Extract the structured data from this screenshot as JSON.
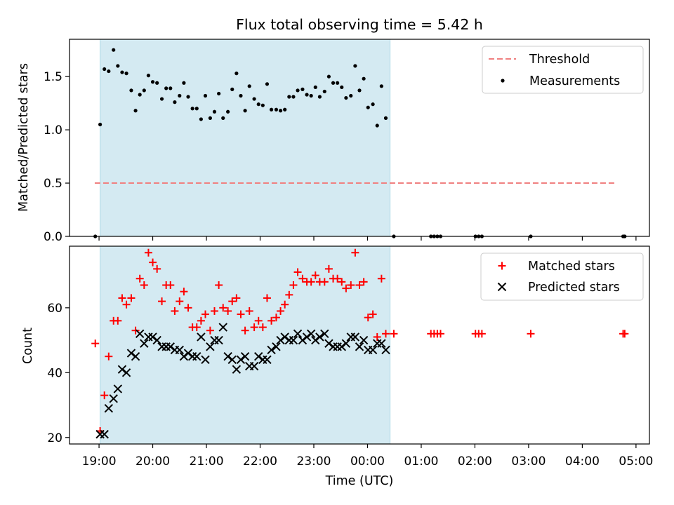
{
  "title": "Flux total observing time = 5.42 h",
  "chart_data": [
    {
      "type": "scatter",
      "panel": "top",
      "x_unit": "hours since 19:00 UTC",
      "ylabel": "Matched/Predicted stars",
      "ylim": [
        0,
        1.85
      ],
      "yticks": [
        0.0,
        0.5,
        1.0,
        1.5
      ],
      "ytick_labels": [
        "0.0",
        "0.5",
        "1.0",
        "1.5"
      ],
      "shaded_interval": [
        0.02,
        5.42
      ],
      "legend_position": "upper right",
      "series": [
        {
          "name": "Threshold",
          "kind": "dashed-line",
          "color": "#f08080",
          "x": [
            -0.08,
            9.6
          ],
          "y": [
            0.5,
            0.5
          ]
        },
        {
          "name": "Measurements",
          "kind": "dots",
          "color": "#000000",
          "points": [
            [
              -0.07,
              0.0
            ],
            [
              0.02,
              1.05
            ],
            [
              0.1,
              1.57
            ],
            [
              0.18,
              1.55
            ],
            [
              0.27,
              1.75
            ],
            [
              0.35,
              1.6
            ],
            [
              0.43,
              1.54
            ],
            [
              0.51,
              1.53
            ],
            [
              0.6,
              1.37
            ],
            [
              0.68,
              1.18
            ],
            [
              0.76,
              1.33
            ],
            [
              0.84,
              1.37
            ],
            [
              0.92,
              1.51
            ],
            [
              1.0,
              1.45
            ],
            [
              1.08,
              1.44
            ],
            [
              1.17,
              1.29
            ],
            [
              1.25,
              1.39
            ],
            [
              1.33,
              1.39
            ],
            [
              1.41,
              1.26
            ],
            [
              1.5,
              1.32
            ],
            [
              1.58,
              1.44
            ],
            [
              1.66,
              1.31
            ],
            [
              1.74,
              1.2
            ],
            [
              1.82,
              1.2
            ],
            [
              1.9,
              1.1
            ],
            [
              1.98,
              1.32
            ],
            [
              2.07,
              1.11
            ],
            [
              2.15,
              1.17
            ],
            [
              2.23,
              1.34
            ],
            [
              2.31,
              1.11
            ],
            [
              2.4,
              1.17
            ],
            [
              2.48,
              1.38
            ],
            [
              2.56,
              1.53
            ],
            [
              2.64,
              1.32
            ],
            [
              2.72,
              1.18
            ],
            [
              2.8,
              1.41
            ],
            [
              2.89,
              1.29
            ],
            [
              2.97,
              1.24
            ],
            [
              3.05,
              1.23
            ],
            [
              3.13,
              1.43
            ],
            [
              3.21,
              1.19
            ],
            [
              3.3,
              1.19
            ],
            [
              3.38,
              1.18
            ],
            [
              3.46,
              1.19
            ],
            [
              3.54,
              1.31
            ],
            [
              3.62,
              1.31
            ],
            [
              3.7,
              1.37
            ],
            [
              3.79,
              1.38
            ],
            [
              3.87,
              1.33
            ],
            [
              3.95,
              1.32
            ],
            [
              4.03,
              1.4
            ],
            [
              4.11,
              1.31
            ],
            [
              4.2,
              1.36
            ],
            [
              4.28,
              1.5
            ],
            [
              4.36,
              1.44
            ],
            [
              4.44,
              1.44
            ],
            [
              4.52,
              1.4
            ],
            [
              4.6,
              1.3
            ],
            [
              4.69,
              1.32
            ],
            [
              4.77,
              1.6
            ],
            [
              4.85,
              1.37
            ],
            [
              4.93,
              1.48
            ],
            [
              5.01,
              1.21
            ],
            [
              5.1,
              1.24
            ],
            [
              5.18,
              1.04
            ],
            [
              5.26,
              1.41
            ],
            [
              5.34,
              1.11
            ],
            [
              5.49,
              0.0
            ],
            [
              6.18,
              0.0
            ],
            [
              6.24,
              0.0
            ],
            [
              6.3,
              0.0
            ],
            [
              6.36,
              0.0
            ],
            [
              7.01,
              0.0
            ],
            [
              7.07,
              0.0
            ],
            [
              7.13,
              0.0
            ],
            [
              8.04,
              0.0
            ],
            [
              9.76,
              0.0
            ],
            [
              9.79,
              0.0
            ]
          ]
        }
      ]
    },
    {
      "type": "scatter",
      "panel": "bottom",
      "x_unit": "hours since 19:00 UTC",
      "xlabel": "Time (UTC)",
      "ylabel": "Count",
      "ylim": [
        18,
        79
      ],
      "yticks": [
        20,
        40,
        60
      ],
      "ytick_labels": [
        "20",
        "40",
        "60"
      ],
      "xlim": [
        -0.55,
        10.25
      ],
      "xticks": [
        0,
        1,
        2,
        3,
        4,
        5,
        6,
        7,
        8,
        9,
        10
      ],
      "xtick_labels": [
        "19:00",
        "20:00",
        "21:00",
        "22:00",
        "23:00",
        "00:00",
        "01:00",
        "02:00",
        "03:00",
        "04:00",
        "05:00"
      ],
      "shaded_interval": [
        0.02,
        5.42
      ],
      "legend_position": "upper right",
      "series": [
        {
          "name": "Matched stars",
          "marker": "plus",
          "color": "#ff0000",
          "points": [
            [
              -0.07,
              49
            ],
            [
              0.02,
              22
            ],
            [
              0.1,
              33
            ],
            [
              0.18,
              45
            ],
            [
              0.27,
              56
            ],
            [
              0.35,
              56
            ],
            [
              0.43,
              63
            ],
            [
              0.51,
              61
            ],
            [
              0.6,
              63
            ],
            [
              0.68,
              53
            ],
            [
              0.76,
              69
            ],
            [
              0.84,
              67
            ],
            [
              0.92,
              77
            ],
            [
              1.0,
              74
            ],
            [
              1.08,
              72
            ],
            [
              1.17,
              62
            ],
            [
              1.25,
              67
            ],
            [
              1.33,
              67
            ],
            [
              1.41,
              59
            ],
            [
              1.5,
              62
            ],
            [
              1.58,
              65
            ],
            [
              1.66,
              60
            ],
            [
              1.74,
              54
            ],
            [
              1.82,
              54
            ],
            [
              1.9,
              56
            ],
            [
              1.98,
              58
            ],
            [
              2.07,
              53
            ],
            [
              2.15,
              59
            ],
            [
              2.23,
              67
            ],
            [
              2.31,
              60
            ],
            [
              2.4,
              59
            ],
            [
              2.48,
              62
            ],
            [
              2.56,
              63
            ],
            [
              2.64,
              58
            ],
            [
              2.72,
              53
            ],
            [
              2.8,
              59
            ],
            [
              2.89,
              54
            ],
            [
              2.97,
              56
            ],
            [
              3.05,
              54
            ],
            [
              3.13,
              63
            ],
            [
              3.21,
              56
            ],
            [
              3.3,
              57
            ],
            [
              3.38,
              59
            ],
            [
              3.46,
              61
            ],
            [
              3.54,
              64
            ],
            [
              3.62,
              67
            ],
            [
              3.7,
              71
            ],
            [
              3.79,
              69
            ],
            [
              3.87,
              68
            ],
            [
              3.95,
              68
            ],
            [
              4.03,
              70
            ],
            [
              4.11,
              68
            ],
            [
              4.2,
              68
            ],
            [
              4.28,
              72
            ],
            [
              4.36,
              69
            ],
            [
              4.44,
              69
            ],
            [
              4.52,
              68
            ],
            [
              4.6,
              66
            ],
            [
              4.69,
              67
            ],
            [
              4.77,
              77
            ],
            [
              4.85,
              67
            ],
            [
              4.93,
              68
            ],
            [
              5.01,
              57
            ],
            [
              5.1,
              58
            ],
            [
              5.18,
              51
            ],
            [
              5.26,
              69
            ],
            [
              5.34,
              52
            ],
            [
              5.49,
              52
            ],
            [
              6.18,
              52
            ],
            [
              6.24,
              52
            ],
            [
              6.3,
              52
            ],
            [
              6.36,
              52
            ],
            [
              7.01,
              52
            ],
            [
              7.07,
              52
            ],
            [
              7.13,
              52
            ],
            [
              8.04,
              52
            ],
            [
              9.76,
              52
            ],
            [
              9.79,
              52
            ]
          ]
        },
        {
          "name": "Predicted stars",
          "marker": "cross",
          "color": "#000000",
          "points": [
            [
              0.02,
              21
            ],
            [
              0.1,
              21
            ],
            [
              0.18,
              29
            ],
            [
              0.27,
              32
            ],
            [
              0.35,
              35
            ],
            [
              0.43,
              41
            ],
            [
              0.51,
              40
            ],
            [
              0.6,
              46
            ],
            [
              0.68,
              45
            ],
            [
              0.76,
              52
            ],
            [
              0.84,
              49
            ],
            [
              0.92,
              51
            ],
            [
              1.0,
              51
            ],
            [
              1.08,
              50
            ],
            [
              1.17,
              48
            ],
            [
              1.25,
              48
            ],
            [
              1.33,
              48
            ],
            [
              1.41,
              47
            ],
            [
              1.5,
              47
            ],
            [
              1.58,
              45
            ],
            [
              1.66,
              46
            ],
            [
              1.74,
              45
            ],
            [
              1.82,
              45
            ],
            [
              1.9,
              51
            ],
            [
              1.98,
              44
            ],
            [
              2.07,
              48
            ],
            [
              2.15,
              50
            ],
            [
              2.23,
              50
            ],
            [
              2.31,
              54
            ],
            [
              2.4,
              45
            ],
            [
              2.48,
              44
            ],
            [
              2.56,
              41
            ],
            [
              2.64,
              44
            ],
            [
              2.72,
              45
            ],
            [
              2.8,
              42
            ],
            [
              2.89,
              42
            ],
            [
              2.97,
              45
            ],
            [
              3.05,
              44
            ],
            [
              3.13,
              44
            ],
            [
              3.21,
              47
            ],
            [
              3.3,
              48
            ],
            [
              3.38,
              50
            ],
            [
              3.46,
              51
            ],
            [
              3.54,
              50
            ],
            [
              3.62,
              50
            ],
            [
              3.7,
              52
            ],
            [
              3.79,
              50
            ],
            [
              3.87,
              51
            ],
            [
              3.95,
              52
            ],
            [
              4.03,
              50
            ],
            [
              4.11,
              51
            ],
            [
              4.2,
              52
            ],
            [
              4.28,
              49
            ],
            [
              4.36,
              48
            ],
            [
              4.44,
              48
            ],
            [
              4.52,
              48
            ],
            [
              4.6,
              49
            ],
            [
              4.69,
              51
            ],
            [
              4.77,
              51
            ],
            [
              4.85,
              48
            ],
            [
              4.93,
              50
            ],
            [
              5.01,
              47
            ],
            [
              5.1,
              47
            ],
            [
              5.18,
              49
            ],
            [
              5.26,
              49
            ],
            [
              5.34,
              47
            ]
          ]
        }
      ]
    }
  ]
}
